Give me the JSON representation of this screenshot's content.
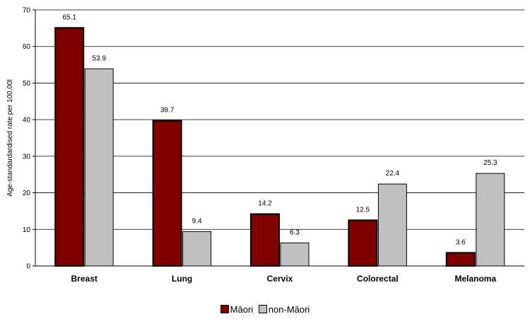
{
  "chart_data": {
    "type": "bar",
    "categories": [
      "Breast",
      "Lung",
      "Cervix",
      "Colorectal",
      "Melanoma"
    ],
    "series": [
      {
        "name": "Māori",
        "values": [
          65.1,
          39.7,
          14.2,
          12.5,
          3.6
        ],
        "color": "#800000"
      },
      {
        "name": "non-Māori",
        "values": [
          53.9,
          9.4,
          6.3,
          22.4,
          25.3
        ],
        "color": "#c0c0c0"
      }
    ],
    "value_labels": [
      [
        "65.1",
        "39.7",
        "14.2",
        "12.5",
        "3.6"
      ],
      [
        "53.9",
        "9.4",
        "6.3",
        "22.4",
        "25.3"
      ]
    ],
    "ylabel": "Age-standardardised rate per 100,00l",
    "ylim": [
      0,
      70
    ],
    "yticks": [
      0,
      10,
      20,
      30,
      40,
      50,
      60,
      70
    ],
    "grid": true,
    "legend_position": "bottom-center"
  }
}
